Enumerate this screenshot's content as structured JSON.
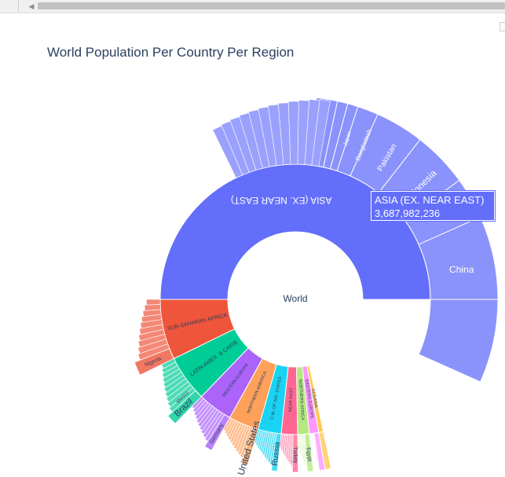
{
  "browser": {
    "scroll_arrow_icon": "left-arrow-icon"
  },
  "chart_data": {
    "type": "sunburst",
    "title": "World Population Per Country Per Region",
    "root": {
      "label": "World"
    },
    "regions": [
      {
        "name": "ASIA (EX. NEAR EAST)",
        "color": "#636efa",
        "value": 3687982236,
        "countries": [
          "China",
          "Indonesia",
          "Pakistan",
          "Bangladesh",
          "Japan"
        ]
      },
      {
        "name": "SUB-SAHARAN AFRICA",
        "color": "#ef553b",
        "countries": [
          "Nigeria"
        ]
      },
      {
        "name": "LATIN AMER. & CARIB",
        "color": "#00cc96",
        "countries": [
          "Brazil",
          "Mexico"
        ]
      },
      {
        "name": "WESTERN EUROPE",
        "color": "#ab63fa",
        "countries": [
          "Germany"
        ]
      },
      {
        "name": "NORTHERN AMERICA",
        "color": "#ffa15a",
        "countries": [
          "United States"
        ]
      },
      {
        "name": "C.W. OF IND. STATES",
        "color": "#19d3f3",
        "countries": [
          "Russia"
        ]
      },
      {
        "name": "NEAR EAST",
        "color": "#ff6692",
        "countries": [
          "Turkey"
        ]
      },
      {
        "name": "NORTHERN AFRICA",
        "color": "#b6e880",
        "countries": [
          "Egypt"
        ]
      },
      {
        "name": "EASTERN EUROPE",
        "color": "#ff97ff",
        "countries": []
      },
      {
        "name": "OCEANIA",
        "color": "#fecb52",
        "countries": []
      }
    ],
    "tooltip": {
      "label": "ASIA (EX. NEAR EAST)",
      "value": "3,687,982,236"
    }
  }
}
